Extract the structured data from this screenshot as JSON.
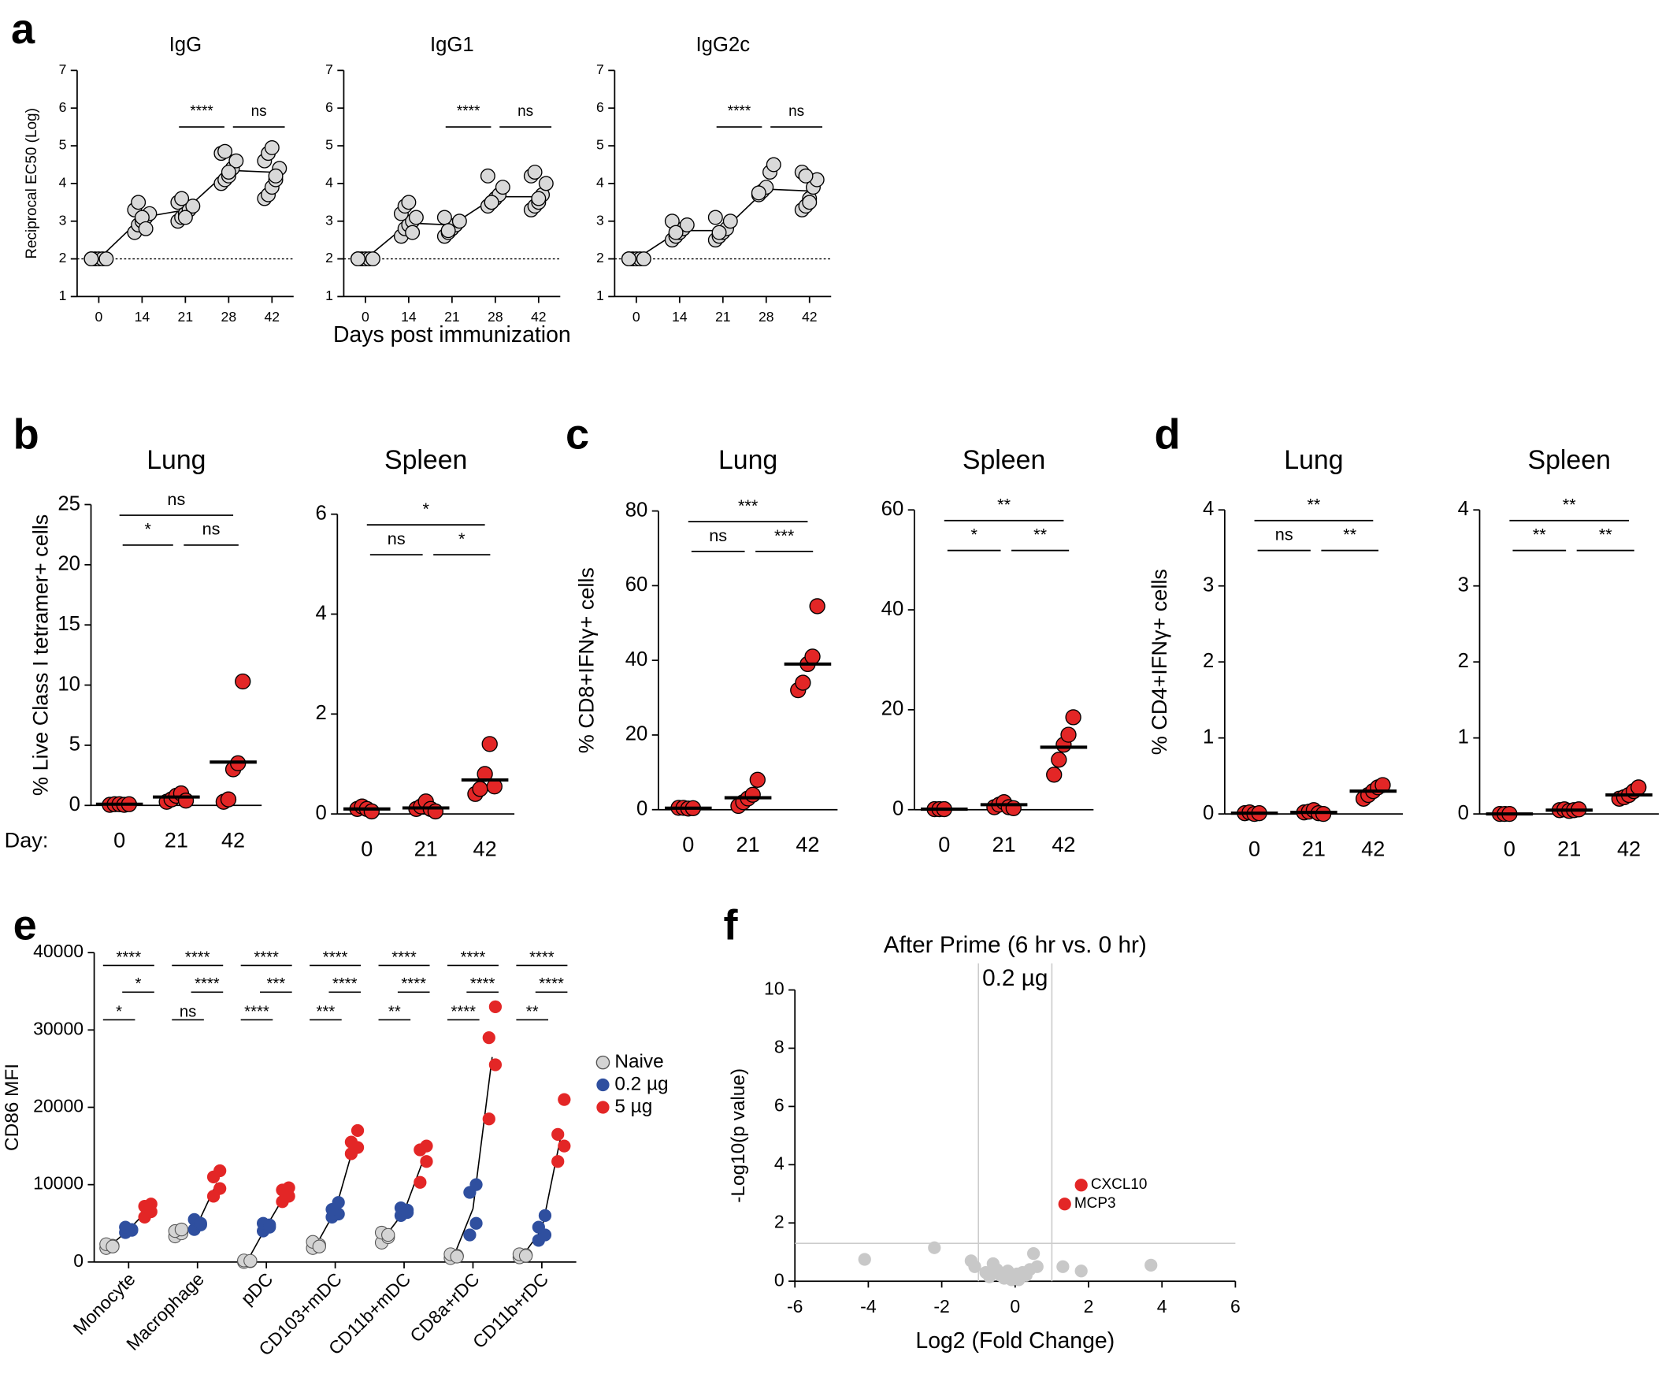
{
  "chart_data": [
    {
      "type": "dot_line",
      "panel": "a",
      "title": "IgG",
      "ylabel": "Reciprocal EC50 (Log)",
      "categories": [
        "0",
        "14",
        "21",
        "28",
        "42"
      ],
      "values": [
        [
          2,
          2,
          2,
          2,
          2,
          2
        ],
        [
          2.7,
          2.9,
          3.0,
          3.1,
          3.2,
          3.3,
          3.5,
          3.1,
          2.8
        ],
        [
          3.0,
          3.1,
          3.2,
          3.3,
          3.4,
          3.5,
          3.6,
          3.1
        ],
        [
          4.0,
          4.1,
          4.2,
          4.4,
          4.6,
          4.8,
          4.85,
          4.3
        ],
        [
          3.6,
          3.7,
          3.9,
          4.1,
          4.4,
          4.6,
          4.8,
          4.95,
          4.2
        ]
      ],
      "means": [
        2,
        3.1,
        3.3,
        4.35,
        4.3
      ],
      "reference_line": 2,
      "color": "#d9d9d9",
      "ylim": [
        1,
        7
      ],
      "yticks": [
        1,
        2,
        3,
        4,
        5,
        6,
        7
      ],
      "significance": [
        {
          "text": "****",
          "from": 2,
          "to": 3
        },
        {
          "text": "ns",
          "from": 3,
          "to": 4
        }
      ]
    },
    {
      "type": "dot_line",
      "title": "IgG1",
      "xlabel": "Days post immunization",
      "categories": [
        "0",
        "14",
        "21",
        "28",
        "42"
      ],
      "values": [
        [
          2,
          2,
          2,
          2,
          2,
          2
        ],
        [
          2.6,
          2.8,
          2.9,
          3.0,
          3.1,
          3.2,
          3.4,
          3.5,
          2.7
        ],
        [
          2.6,
          2.7,
          2.8,
          2.9,
          3.0,
          3.1,
          2.75
        ],
        [
          3.4,
          3.5,
          3.6,
          3.7,
          3.9,
          4.2,
          3.5
        ],
        [
          3.3,
          3.4,
          3.5,
          3.7,
          4.0,
          4.2,
          4.3,
          3.6
        ]
      ],
      "means": [
        2,
        2.95,
        2.9,
        3.65,
        3.65
      ],
      "reference_line": 2,
      "color": "#d9d9d9",
      "ylim": [
        1,
        7
      ],
      "yticks": [
        1,
        2,
        3,
        4,
        5,
        6,
        7
      ],
      "significance": [
        {
          "text": "****",
          "from": 2,
          "to": 3
        },
        {
          "text": "ns",
          "from": 3,
          "to": 4
        }
      ]
    },
    {
      "type": "dot_line",
      "title": "IgG2c",
      "categories": [
        "0",
        "14",
        "21",
        "28",
        "42"
      ],
      "values": [
        [
          2,
          2,
          2,
          2,
          2,
          2
        ],
        [
          2.5,
          2.6,
          2.7,
          2.8,
          2.9,
          3.0,
          2.7
        ],
        [
          2.5,
          2.6,
          2.7,
          2.8,
          3.0,
          3.1,
          2.7
        ],
        [
          3.7,
          3.8,
          3.9,
          4.3,
          4.5,
          3.75
        ],
        [
          3.3,
          3.4,
          3.6,
          3.9,
          4.1,
          4.3,
          4.2,
          3.5
        ]
      ],
      "means": [
        2,
        2.75,
        2.75,
        3.85,
        3.8
      ],
      "reference_line": 2,
      "color": "#d9d9d9",
      "ylim": [
        1,
        7
      ],
      "yticks": [
        1,
        2,
        3,
        4,
        5,
        6,
        7
      ],
      "significance": [
        {
          "text": "****",
          "from": 2,
          "to": 3
        },
        {
          "text": "ns",
          "from": 3,
          "to": 4
        }
      ]
    },
    {
      "type": "dot",
      "panel": "b",
      "title": "Lung",
      "ylabel": "% Live Class I tetramer+ cells",
      "row_label": "Day:",
      "categories": [
        "0",
        "21",
        "42"
      ],
      "values": [
        [
          0.05,
          0.1,
          0.1,
          0.05,
          0.1
        ],
        [
          0.3,
          0.5,
          0.8,
          1.0,
          0.4
        ],
        [
          0.3,
          0.5,
          3.0,
          3.5,
          10.3
        ]
      ],
      "medians": [
        0.1,
        0.7,
        3.6
      ],
      "color": "#e32626",
      "ylim": [
        0,
        25
      ],
      "yticks": [
        0,
        5,
        10,
        15,
        20,
        25
      ],
      "significance": [
        {
          "text": "ns",
          "from": 0,
          "to": 2
        },
        {
          "text": "*",
          "from": 0,
          "to": 1
        },
        {
          "text": "ns",
          "from": 1,
          "to": 2
        }
      ]
    },
    {
      "type": "dot",
      "title": "Spleen",
      "categories": [
        "0",
        "21",
        "42"
      ],
      "values": [
        [
          0.1,
          0.15,
          0.1,
          0.05
        ],
        [
          0.1,
          0.15,
          0.25,
          0.1,
          0.05
        ],
        [
          0.4,
          0.5,
          0.8,
          1.4,
          0.55
        ]
      ],
      "medians": [
        0.1,
        0.12,
        0.68
      ],
      "color": "#e32626",
      "ylim": [
        0,
        6
      ],
      "yticks": [
        0,
        2,
        4,
        6
      ],
      "significance": [
        {
          "text": "*",
          "from": 0,
          "to": 2
        },
        {
          "text": "ns",
          "from": 0,
          "to": 1
        },
        {
          "text": "*",
          "from": 1,
          "to": 2
        }
      ]
    },
    {
      "type": "dot",
      "panel": "c",
      "title": "Lung",
      "ylabel": "% CD8+IFNγ+ cells",
      "categories": [
        "0",
        "21",
        "42"
      ],
      "values": [
        [
          0.5,
          0.5,
          0.3,
          0.4
        ],
        [
          1,
          2,
          3,
          4,
          8
        ],
        [
          32,
          34,
          39,
          41,
          54.5
        ]
      ],
      "medians": [
        0.4,
        3.2,
        39
      ],
      "color": "#e32626",
      "ylim": [
        0,
        80
      ],
      "yticks": [
        0,
        20,
        40,
        60,
        80
      ],
      "significance": [
        {
          "text": "***",
          "from": 0,
          "to": 2
        },
        {
          "text": "ns",
          "from": 0,
          "to": 1
        },
        {
          "text": "***",
          "from": 1,
          "to": 2
        }
      ]
    },
    {
      "type": "dot",
      "title": "Spleen",
      "categories": [
        "0",
        "21",
        "42"
      ],
      "values": [
        [
          0.1,
          0.1,
          0.1
        ],
        [
          0.5,
          1,
          1.5,
          0.5,
          0.3
        ],
        [
          7,
          10,
          13,
          15,
          18.5
        ]
      ],
      "medians": [
        0.1,
        1,
        12.5
      ],
      "color": "#e32626",
      "ylim": [
        0,
        60
      ],
      "yticks": [
        0,
        20,
        40,
        60
      ],
      "significance": [
        {
          "text": "**",
          "from": 0,
          "to": 2
        },
        {
          "text": "*",
          "from": 0,
          "to": 1
        },
        {
          "text": "**",
          "from": 1,
          "to": 2
        }
      ]
    },
    {
      "type": "dot",
      "panel": "d",
      "title": "Lung",
      "ylabel": "% CD4+IFNγ+ cells",
      "categories": [
        "0",
        "21",
        "42"
      ],
      "values": [
        [
          0.01,
          0.02,
          0.0,
          0.01
        ],
        [
          0.02,
          0.03,
          0.05,
          0.01,
          0.0
        ],
        [
          0.2,
          0.25,
          0.3,
          0.35,
          0.38
        ]
      ],
      "medians": [
        0.01,
        0.02,
        0.3
      ],
      "color": "#e32626",
      "ylim": [
        0,
        4
      ],
      "yticks": [
        0,
        1,
        2,
        3,
        4
      ],
      "significance": [
        {
          "text": "**",
          "from": 0,
          "to": 2
        },
        {
          "text": "ns",
          "from": 0,
          "to": 1
        },
        {
          "text": "**",
          "from": 1,
          "to": 2
        }
      ]
    },
    {
      "type": "dot",
      "title": "Spleen",
      "categories": [
        "0",
        "21",
        "42"
      ],
      "values": [
        [
          0.0,
          0.0,
          0.0
        ],
        [
          0.05,
          0.06,
          0.04,
          0.05,
          0.06
        ],
        [
          0.2,
          0.22,
          0.25,
          0.3,
          0.35
        ]
      ],
      "medians": [
        0.0,
        0.05,
        0.25
      ],
      "color": "#e32626",
      "ylim": [
        0,
        4
      ],
      "yticks": [
        0,
        1,
        2,
        3,
        4
      ],
      "significance": [
        {
          "text": "**",
          "from": 0,
          "to": 2
        },
        {
          "text": "**",
          "from": 0,
          "to": 1
        },
        {
          "text": "**",
          "from": 1,
          "to": 2
        }
      ]
    },
    {
      "type": "grouped_dot",
      "panel": "e",
      "ylabel": "CD86 MFI",
      "categories": [
        "Monocyte",
        "Macrophage",
        "pDC",
        "CD103+mDC",
        "CD11b+mDC",
        "CD8a+rDC",
        "CD11b+rDC"
      ],
      "series": [
        {
          "name": "Naive",
          "color": "#d4d4d4",
          "values": [
            [
              1800,
              2100,
              2300,
              2000
            ],
            [
              3300,
              3700,
              4000,
              4200
            ],
            [
              0,
              100,
              200,
              150
            ],
            [
              1800,
              2200,
              2600,
              2000
            ],
            [
              2500,
              3200,
              3800,
              3500
            ],
            [
              500,
              800,
              1000,
              700
            ],
            [
              600,
              900,
              1000,
              800
            ]
          ],
          "means": [
            2050,
            3800,
            110,
            2150,
            3250,
            750,
            825
          ]
        },
        {
          "name": "0.2 µg",
          "color": "#2f4f9f",
          "values": [
            [
              3800,
              4200,
              4500,
              4100
            ],
            [
              4200,
              4800,
              5500,
              5000
            ],
            [
              4000,
              4500,
              5000,
              4800
            ],
            [
              5800,
              6200,
              6800,
              7700
            ],
            [
              6000,
              6400,
              7000,
              6700
            ],
            [
              3500,
              5000,
              9000,
              10000
            ],
            [
              2800,
              3500,
              4500,
              6000
            ]
          ],
          "means": [
            4150,
            4875,
            4575,
            6625,
            6525,
            6875,
            4200
          ]
        },
        {
          "name": "5 µg",
          "color": "#e32626",
          "values": [
            [
              5800,
              6500,
              7200,
              7500
            ],
            [
              8500,
              9500,
              11000,
              11800
            ],
            [
              7800,
              8500,
              9300,
              9600
            ],
            [
              14000,
              14800,
              15500,
              17000
            ],
            [
              10300,
              13000,
              14500,
              15000
            ],
            [
              18500,
              25500,
              29000,
              33000
            ],
            [
              13000,
              15000,
              16500,
              21000
            ]
          ],
          "means": [
            6750,
            10200,
            8800,
            15325,
            13200,
            26500,
            16375
          ]
        }
      ],
      "ylim": [
        0,
        40000
      ],
      "yticks": [
        0,
        10000,
        20000,
        30000,
        40000
      ],
      "significance": [
        [
          {
            "text": "****",
            "from": 0,
            "to": 2
          },
          {
            "text": "*",
            "from": 1,
            "to": 2
          },
          {
            "text": "*",
            "from": 0,
            "to": 1
          }
        ],
        [
          {
            "text": "****",
            "from": 0,
            "to": 2
          },
          {
            "text": "****",
            "from": 1,
            "to": 2
          },
          {
            "text": "ns",
            "from": 0,
            "to": 1
          }
        ],
        [
          {
            "text": "****",
            "from": 0,
            "to": 2
          },
          {
            "text": "***",
            "from": 1,
            "to": 2
          },
          {
            "text": "****",
            "from": 0,
            "to": 1
          }
        ],
        [
          {
            "text": "****",
            "from": 0,
            "to": 2
          },
          {
            "text": "****",
            "from": 1,
            "to": 2
          },
          {
            "text": "***",
            "from": 0,
            "to": 1
          }
        ],
        [
          {
            "text": "****",
            "from": 0,
            "to": 2
          },
          {
            "text": "****",
            "from": 1,
            "to": 2
          },
          {
            "text": "**",
            "from": 0,
            "to": 1
          }
        ],
        [
          {
            "text": "****",
            "from": 0,
            "to": 2
          },
          {
            "text": "****",
            "from": 1,
            "to": 2
          },
          {
            "text": "****",
            "from": 0,
            "to": 1
          }
        ],
        [
          {
            "text": "****",
            "from": 0,
            "to": 2
          },
          {
            "text": "****",
            "from": 1,
            "to": 2
          },
          {
            "text": "**",
            "from": 0,
            "to": 1
          }
        ]
      ]
    },
    {
      "type": "scatter",
      "panel": "f",
      "title": "After Prime (6 hr vs. 0 hr)",
      "subtitle": "0.2 µg",
      "xlabel": "Log2 (Fold Change)",
      "ylabel": "-Log10(p value)",
      "x": [
        -4.1,
        -2.2,
        -1.2,
        -1.1,
        -0.8,
        -0.6,
        -0.5,
        -0.4,
        -0.3,
        -0.2,
        -0.1,
        0,
        0.1,
        0.2,
        0.3,
        0.4,
        0.5,
        0.6,
        1.3,
        1.8,
        3.7,
        -0.7,
        0.05,
        -0.15
      ],
      "y": [
        0.75,
        1.15,
        0.7,
        0.5,
        0.3,
        0.6,
        0.4,
        0.2,
        0.1,
        0.35,
        0.05,
        0.15,
        0.05,
        0.3,
        0.2,
        0.4,
        0.95,
        0.5,
        0.5,
        0.35,
        0.55,
        0.15,
        0.25,
        0.2
      ],
      "color": "#c8c8c8",
      "highlights": [
        {
          "label": "CXCL10",
          "x": 1.8,
          "y": 3.3
        },
        {
          "label": "MCP3",
          "x": 1.35,
          "y": 2.65
        }
      ],
      "highlight_color": "#e32626",
      "vlines": [
        -1,
        1
      ],
      "hline": 1.3,
      "xlim": [
        -6,
        6
      ],
      "xticks": [
        -6,
        -4,
        -2,
        0,
        2,
        4,
        6
      ],
      "ylim": [
        0,
        10
      ],
      "yticks": [
        0,
        2,
        4,
        6,
        8,
        10
      ]
    }
  ]
}
